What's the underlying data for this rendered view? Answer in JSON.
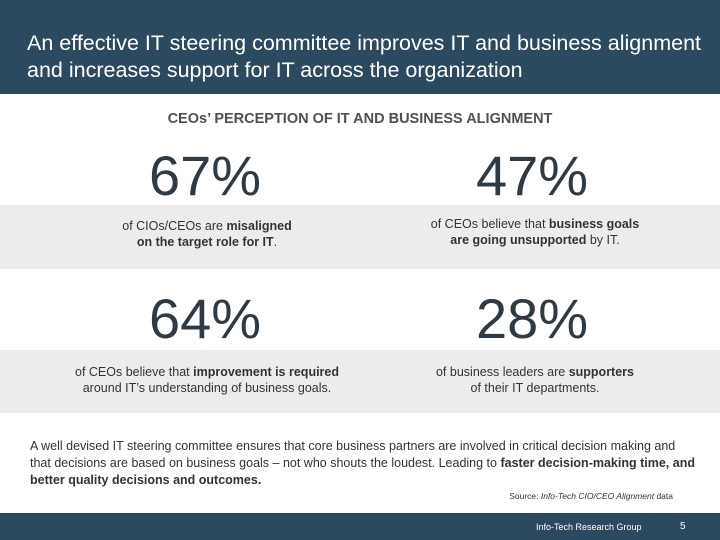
{
  "header": {
    "title": "An effective IT steering committee improves IT and business alignment and increases support for IT across the organization"
  },
  "subtitle": "CEOs’ PERCEPTION OF IT AND BUSINESS ALIGNMENT",
  "stats": [
    {
      "value": "67%",
      "desc": [
        {
          "text": "of CIOs/CEOs are ",
          "bold": false
        },
        {
          "text": "misaligned",
          "bold": true
        },
        {
          "text": "\n",
          "bold": false
        },
        {
          "text": "on the target role for IT",
          "bold": true
        },
        {
          "text": ".",
          "bold": false
        }
      ]
    },
    {
      "value": "47%",
      "desc": [
        {
          "text": "of CEOs believe that ",
          "bold": false
        },
        {
          "text": "business goals",
          "bold": true
        },
        {
          "text": "\n",
          "bold": false
        },
        {
          "text": "are going unsupported",
          "bold": true
        },
        {
          "text": " by IT.",
          "bold": false
        }
      ]
    },
    {
      "value": "64%",
      "desc": [
        {
          "text": "of CEOs believe that ",
          "bold": false
        },
        {
          "text": "improvement is required",
          "bold": true
        },
        {
          "text": "\n",
          "bold": false
        },
        {
          "text": "around IT’s understanding of business goals.",
          "bold": false
        }
      ]
    },
    {
      "value": "28%",
      "desc": [
        {
          "text": "of business leaders are ",
          "bold": false
        },
        {
          "text": "supporters",
          "bold": true
        },
        {
          "text": "\n",
          "bold": false
        },
        {
          "text": "of their IT departments.",
          "bold": false
        }
      ]
    }
  ],
  "body": [
    {
      "text": "A well devised IT steering committee ensures that core business partners are involved in critical decision making and that decisions are based on business goals – not who shouts the loudest. Leading to ",
      "bold": false
    },
    {
      "text": "faster decision-making time, and better quality decisions and outcomes.",
      "bold": true
    }
  ],
  "source": {
    "label": "Source: ",
    "name": "Info-Tech CIO/CEO Alignment",
    "suffix": " data"
  },
  "footer": {
    "org": "Info-Tech Research Group",
    "page": "5"
  }
}
